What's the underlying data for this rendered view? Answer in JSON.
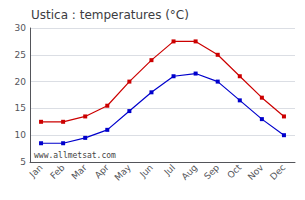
{
  "chart_data": {
    "type": "line",
    "title": "Ustica : temperatures (°C)",
    "categories": [
      "Jan",
      "Feb",
      "Mar",
      "Apr",
      "May",
      "Jun",
      "Jul",
      "Aug",
      "Sep",
      "Oct",
      "Nov",
      "Dec"
    ],
    "series": [
      {
        "color": "#cc0000",
        "marker": "square",
        "values": [
          12.5,
          12.5,
          13.5,
          15.5,
          20.0,
          24.0,
          27.5,
          27.5,
          25.0,
          21.0,
          17.0,
          13.5
        ]
      },
      {
        "color": "#0000cc",
        "marker": "square",
        "values": [
          8.5,
          8.5,
          9.5,
          11.0,
          14.5,
          18.0,
          21.0,
          21.5,
          20.0,
          16.5,
          13.0,
          10.0
        ]
      }
    ],
    "ylim": [
      5,
      30
    ],
    "yticks": [
      5,
      10,
      15,
      20,
      25,
      30
    ],
    "grid": true,
    "annotation": "www.allmetsat.com"
  }
}
